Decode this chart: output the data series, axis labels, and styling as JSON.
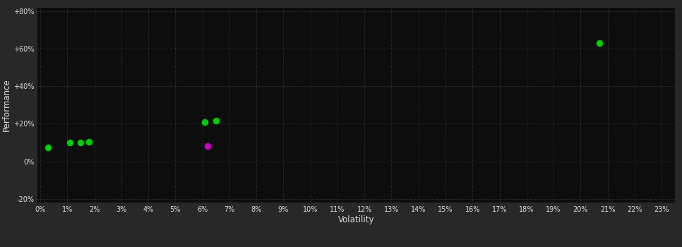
{
  "background_color": "#282828",
  "plot_bg_color": "#0d0d0d",
  "grid_color": "#444444",
  "xlabel": "Volatility",
  "ylabel": "Performance",
  "xlim": [
    -0.001,
    0.235
  ],
  "ylim": [
    -0.22,
    0.82
  ],
  "xticks": [
    0,
    0.01,
    0.02,
    0.03,
    0.04,
    0.05,
    0.06,
    0.07,
    0.08,
    0.09,
    0.1,
    0.11,
    0.12,
    0.13,
    0.14,
    0.15,
    0.16,
    0.17,
    0.18,
    0.19,
    0.2,
    0.21,
    0.22,
    0.23
  ],
  "yticks": [
    -0.2,
    0.0,
    0.2,
    0.4,
    0.6,
    0.8
  ],
  "ytick_labels": [
    "-20%",
    "0%",
    "+20%",
    "+40%",
    "+60%",
    "+80%"
  ],
  "green_dots": [
    [
      0.003,
      0.072
    ],
    [
      0.011,
      0.098
    ],
    [
      0.015,
      0.098
    ],
    [
      0.018,
      0.105
    ],
    [
      0.061,
      0.21
    ],
    [
      0.065,
      0.215
    ],
    [
      0.207,
      0.63
    ]
  ],
  "magenta_dots": [
    [
      0.062,
      0.08
    ]
  ],
  "dot_color_green": "#00cc00",
  "dot_color_magenta": "#cc00cc",
  "dot_size": 35,
  "font_color": "#dddddd",
  "tick_fontsize": 7,
  "axis_label_fontsize": 8.5
}
